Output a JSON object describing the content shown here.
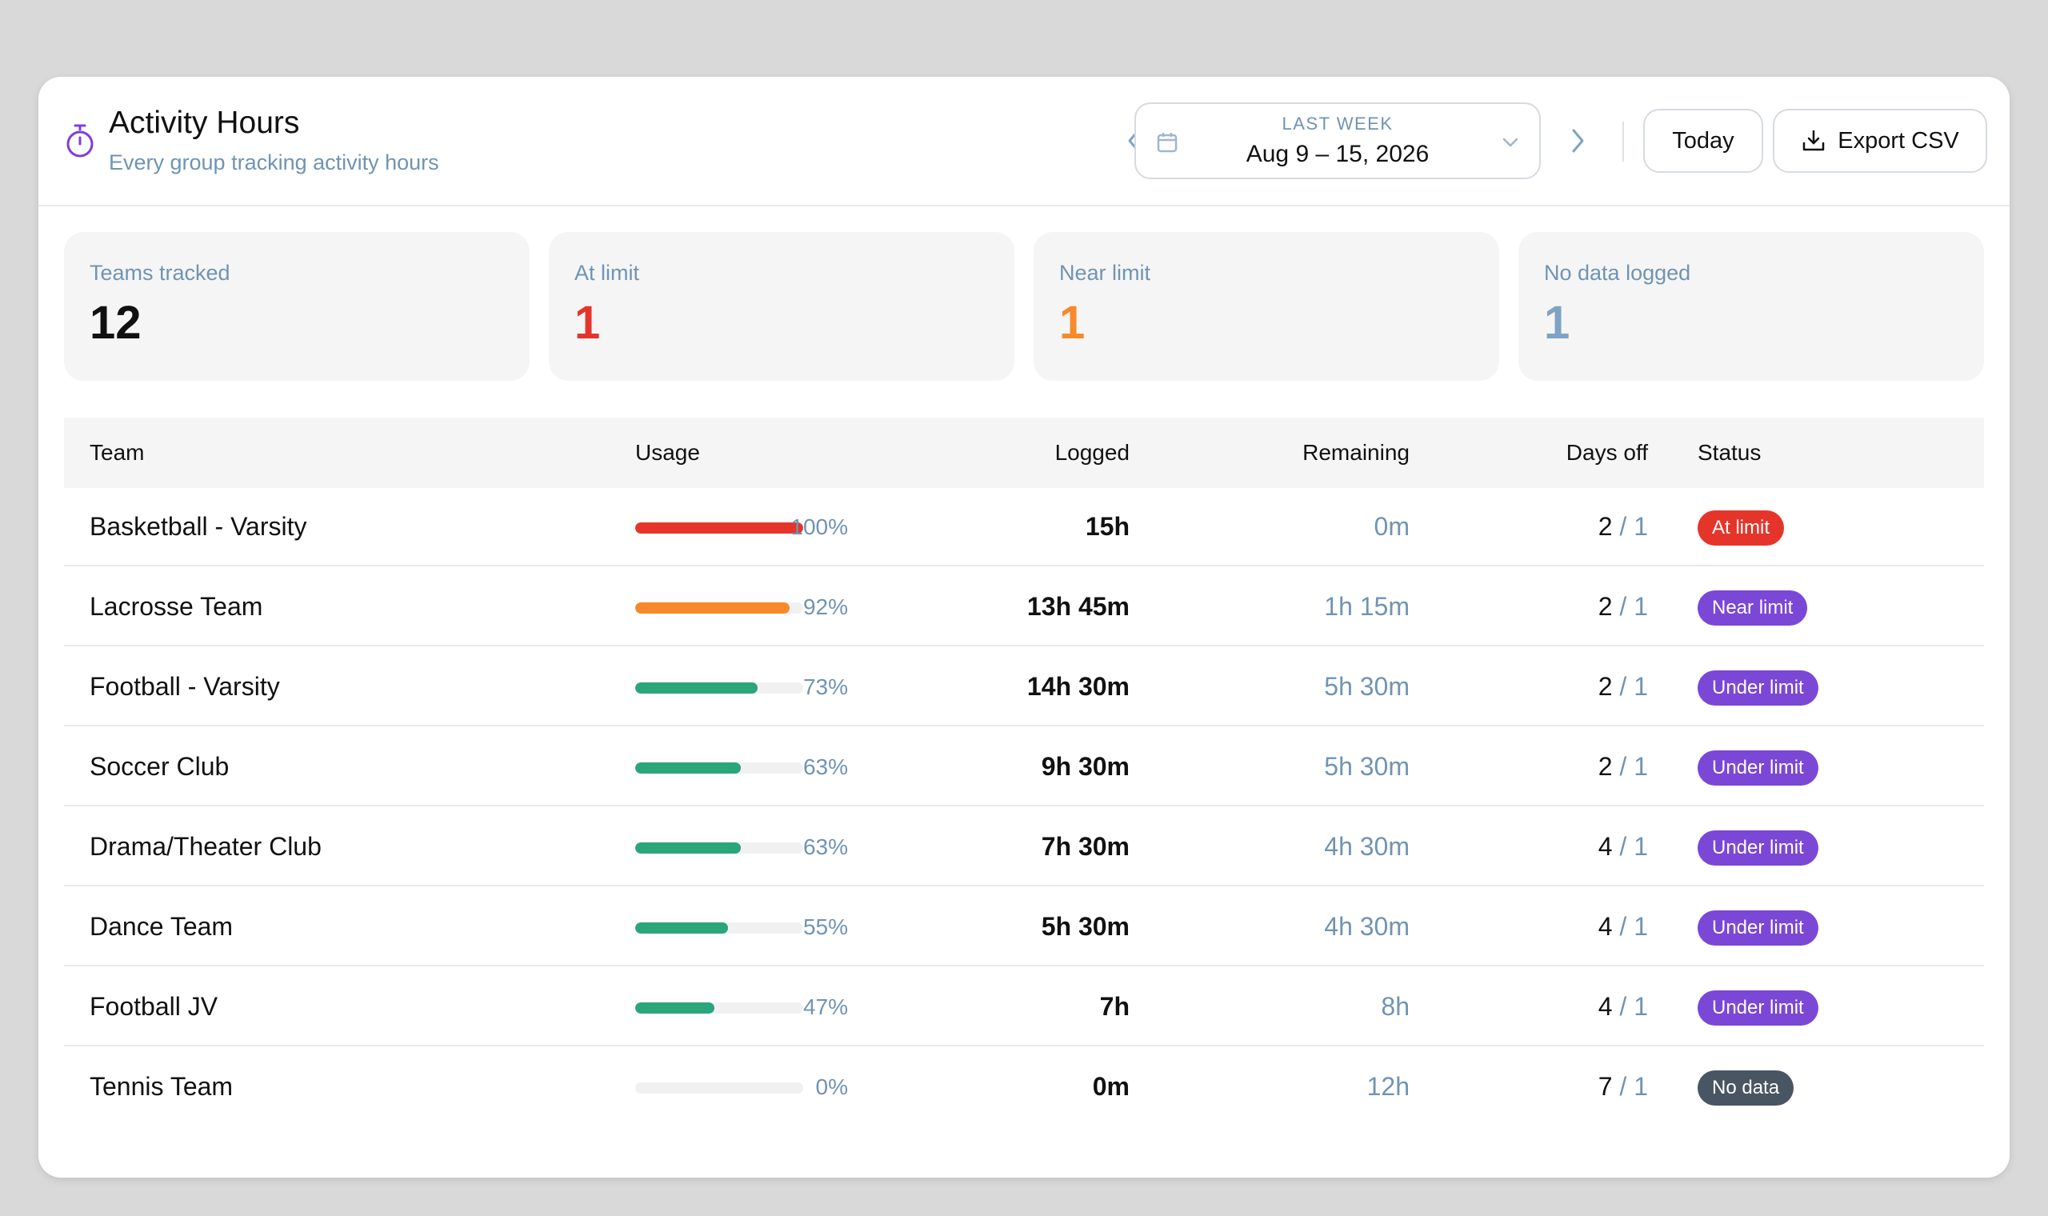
{
  "header": {
    "title": "Activity Hours",
    "subtitle": "Every group tracking activity hours",
    "icon": "stopwatch-icon",
    "range_label": "LAST WEEK",
    "range_value": "Aug 9 – 15, 2026",
    "today_label": "Today",
    "export_label": "Export CSV",
    "accent": "#7b3fe0"
  },
  "stats": [
    {
      "label": "Teams tracked",
      "value": "12",
      "color": "#111111"
    },
    {
      "label": "At limit",
      "value": "1",
      "color": "#e5352b"
    },
    {
      "label": "Near limit",
      "value": "1",
      "color": "#f7892b"
    },
    {
      "label": "No data logged",
      "value": "1",
      "color": "#7ea3c4"
    }
  ],
  "table": {
    "columns": {
      "team": "Team",
      "usage": "Usage",
      "logged": "Logged",
      "remaining": "Remaining",
      "days_off": "Days off",
      "status": "Status"
    },
    "rows": [
      {
        "team": "Basketball - Varsity",
        "usage_pct": 100,
        "usage_text": "100%",
        "bar_color": "#e5352b",
        "logged": "15h",
        "remaining": "0m",
        "days_off": "2",
        "days_off_limit": "1",
        "status": "At limit",
        "status_color": "#e5352b"
      },
      {
        "team": "Lacrosse Team",
        "usage_pct": 92,
        "usage_text": "92%",
        "bar_color": "#f7892b",
        "logged": "13h 45m",
        "remaining": "1h 15m",
        "days_off": "2",
        "days_off_limit": "1",
        "status": "Near limit",
        "status_color": "#7b47d6"
      },
      {
        "team": "Football - Varsity",
        "usage_pct": 73,
        "usage_text": "73%",
        "bar_color": "#2ba57a",
        "logged": "14h 30m",
        "remaining": "5h 30m",
        "days_off": "2",
        "days_off_limit": "1",
        "status": "Under limit",
        "status_color": "#7b47d6"
      },
      {
        "team": "Soccer Club",
        "usage_pct": 63,
        "usage_text": "63%",
        "bar_color": "#2ba57a",
        "logged": "9h 30m",
        "remaining": "5h 30m",
        "days_off": "2",
        "days_off_limit": "1",
        "status": "Under limit",
        "status_color": "#7b47d6"
      },
      {
        "team": "Drama/Theater Club",
        "usage_pct": 63,
        "usage_text": "63%",
        "bar_color": "#2ba57a",
        "logged": "7h 30m",
        "remaining": "4h 30m",
        "days_off": "4",
        "days_off_limit": "1",
        "status": "Under limit",
        "status_color": "#7b47d6"
      },
      {
        "team": "Dance Team",
        "usage_pct": 55,
        "usage_text": "55%",
        "bar_color": "#2ba57a",
        "logged": "5h 30m",
        "remaining": "4h 30m",
        "days_off": "4",
        "days_off_limit": "1",
        "status": "Under limit",
        "status_color": "#7b47d6"
      },
      {
        "team": "Football JV",
        "usage_pct": 47,
        "usage_text": "47%",
        "bar_color": "#2ba57a",
        "logged": "7h",
        "remaining": "8h",
        "days_off": "4",
        "days_off_limit": "1",
        "status": "Under limit",
        "status_color": "#7b47d6"
      },
      {
        "team": "Tennis Team",
        "usage_pct": 0,
        "usage_text": "0%",
        "bar_color": "#2ba57a",
        "logged": "0m",
        "remaining": "12h",
        "days_off": "7",
        "days_off_limit": "1",
        "status": "No data",
        "status_color": "#4a5563"
      }
    ]
  }
}
